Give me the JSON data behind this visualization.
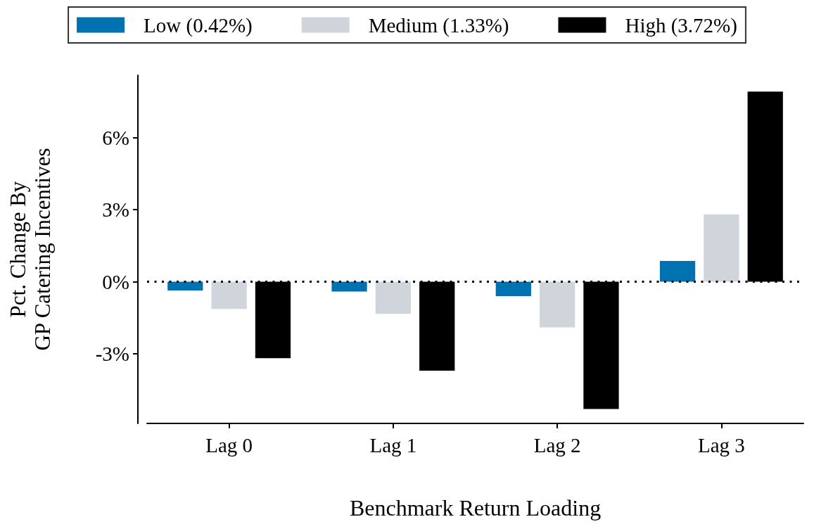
{
  "chart_data": {
    "type": "bar",
    "xlabel": "Benchmark Return Loading",
    "ylabel": "Pct. Change By\nGP Catering Incentives",
    "categories": [
      "Lag 0",
      "Lag 1",
      "Lag 2",
      "Lag 3"
    ],
    "series": [
      {
        "name": "Low (0.42%)",
        "color": "#0072b2",
        "values": [
          -0.36,
          -0.41,
          -0.6,
          0.87
        ]
      },
      {
        "name": "Medium (1.33%)",
        "color": "#d0d4db",
        "values": [
          -1.13,
          -1.34,
          -1.9,
          2.81
        ]
      },
      {
        "name": "High (3.72%)",
        "color": "#000000",
        "values": [
          -3.18,
          -3.7,
          -5.3,
          7.92
        ]
      }
    ],
    "ylim": [
      -5.9,
      8.6
    ],
    "yticks": [
      {
        "value": -3,
        "label": "-3%"
      },
      {
        "value": 0,
        "label": "0%"
      },
      {
        "value": 3,
        "label": "3%"
      },
      {
        "value": 6,
        "label": "6%"
      }
    ],
    "ref_lines": [
      {
        "axis": "y",
        "value": 0,
        "color": "#000000",
        "line_style": "dotted"
      }
    ],
    "legend": "top"
  }
}
